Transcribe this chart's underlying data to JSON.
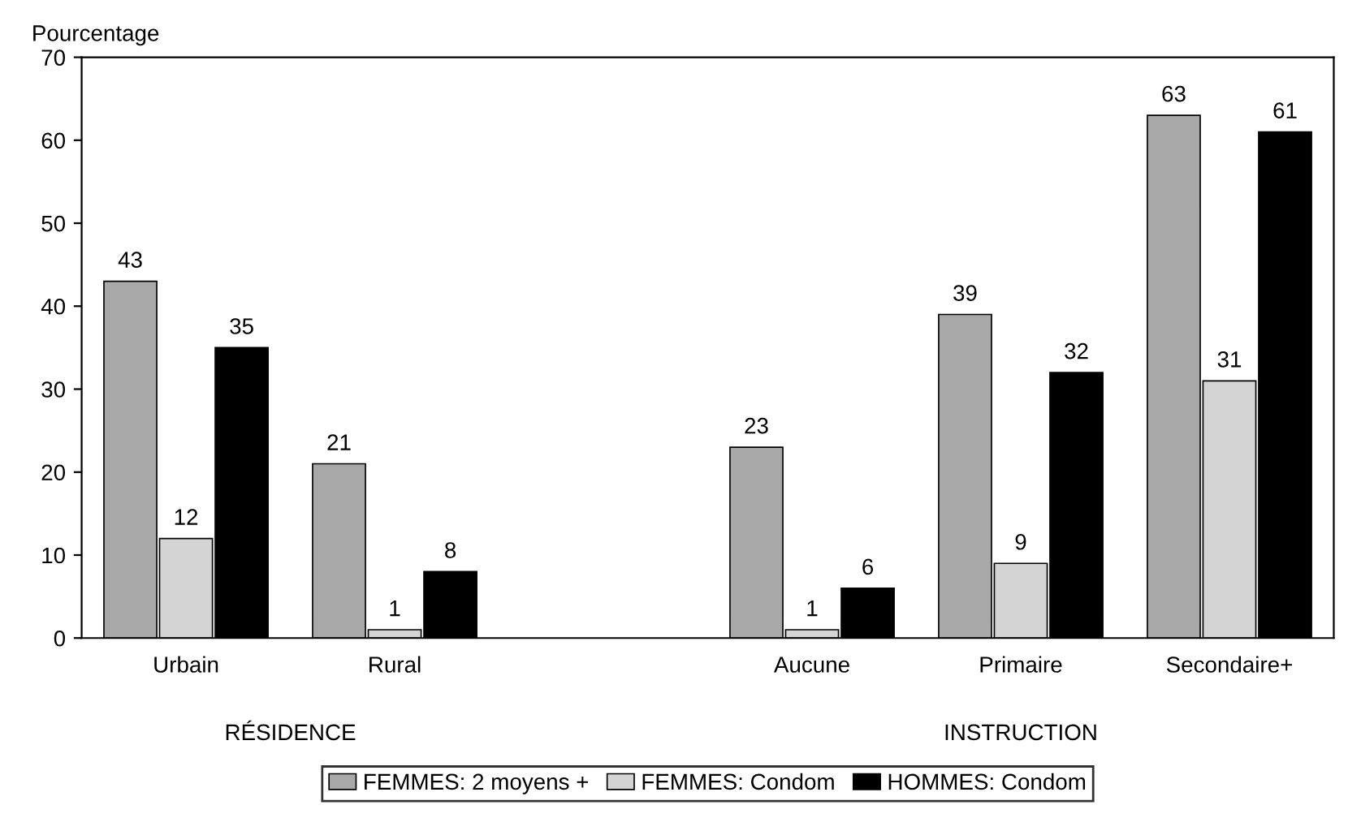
{
  "chart_data": {
    "type": "bar",
    "ylabel": "Pourcentage",
    "categories": [
      "Urbain",
      "Rural",
      null,
      "Aucune",
      "Primaire",
      "Secondaire+"
    ],
    "series": [
      {
        "name": "FEMMES: 2 moyens +",
        "color": "#a8a8a8",
        "values": [
          43,
          21,
          null,
          23,
          39,
          63
        ]
      },
      {
        "name": "FEMMES: Condom",
        "color": "#d4d4d4",
        "values": [
          12,
          1,
          null,
          1,
          9,
          31
        ]
      },
      {
        "name": "HOMMES: Condom",
        "color": "#000000",
        "values": [
          35,
          8,
          null,
          6,
          32,
          61
        ]
      }
    ],
    "ylim": [
      0,
      70
    ],
    "yticks": [
      0,
      10,
      20,
      30,
      40,
      50,
      60,
      70
    ],
    "grid": false,
    "legend": "bottom",
    "data_labels": true,
    "annotations": [
      "RÉSIDENCE",
      "INSTRUCTION"
    ]
  }
}
